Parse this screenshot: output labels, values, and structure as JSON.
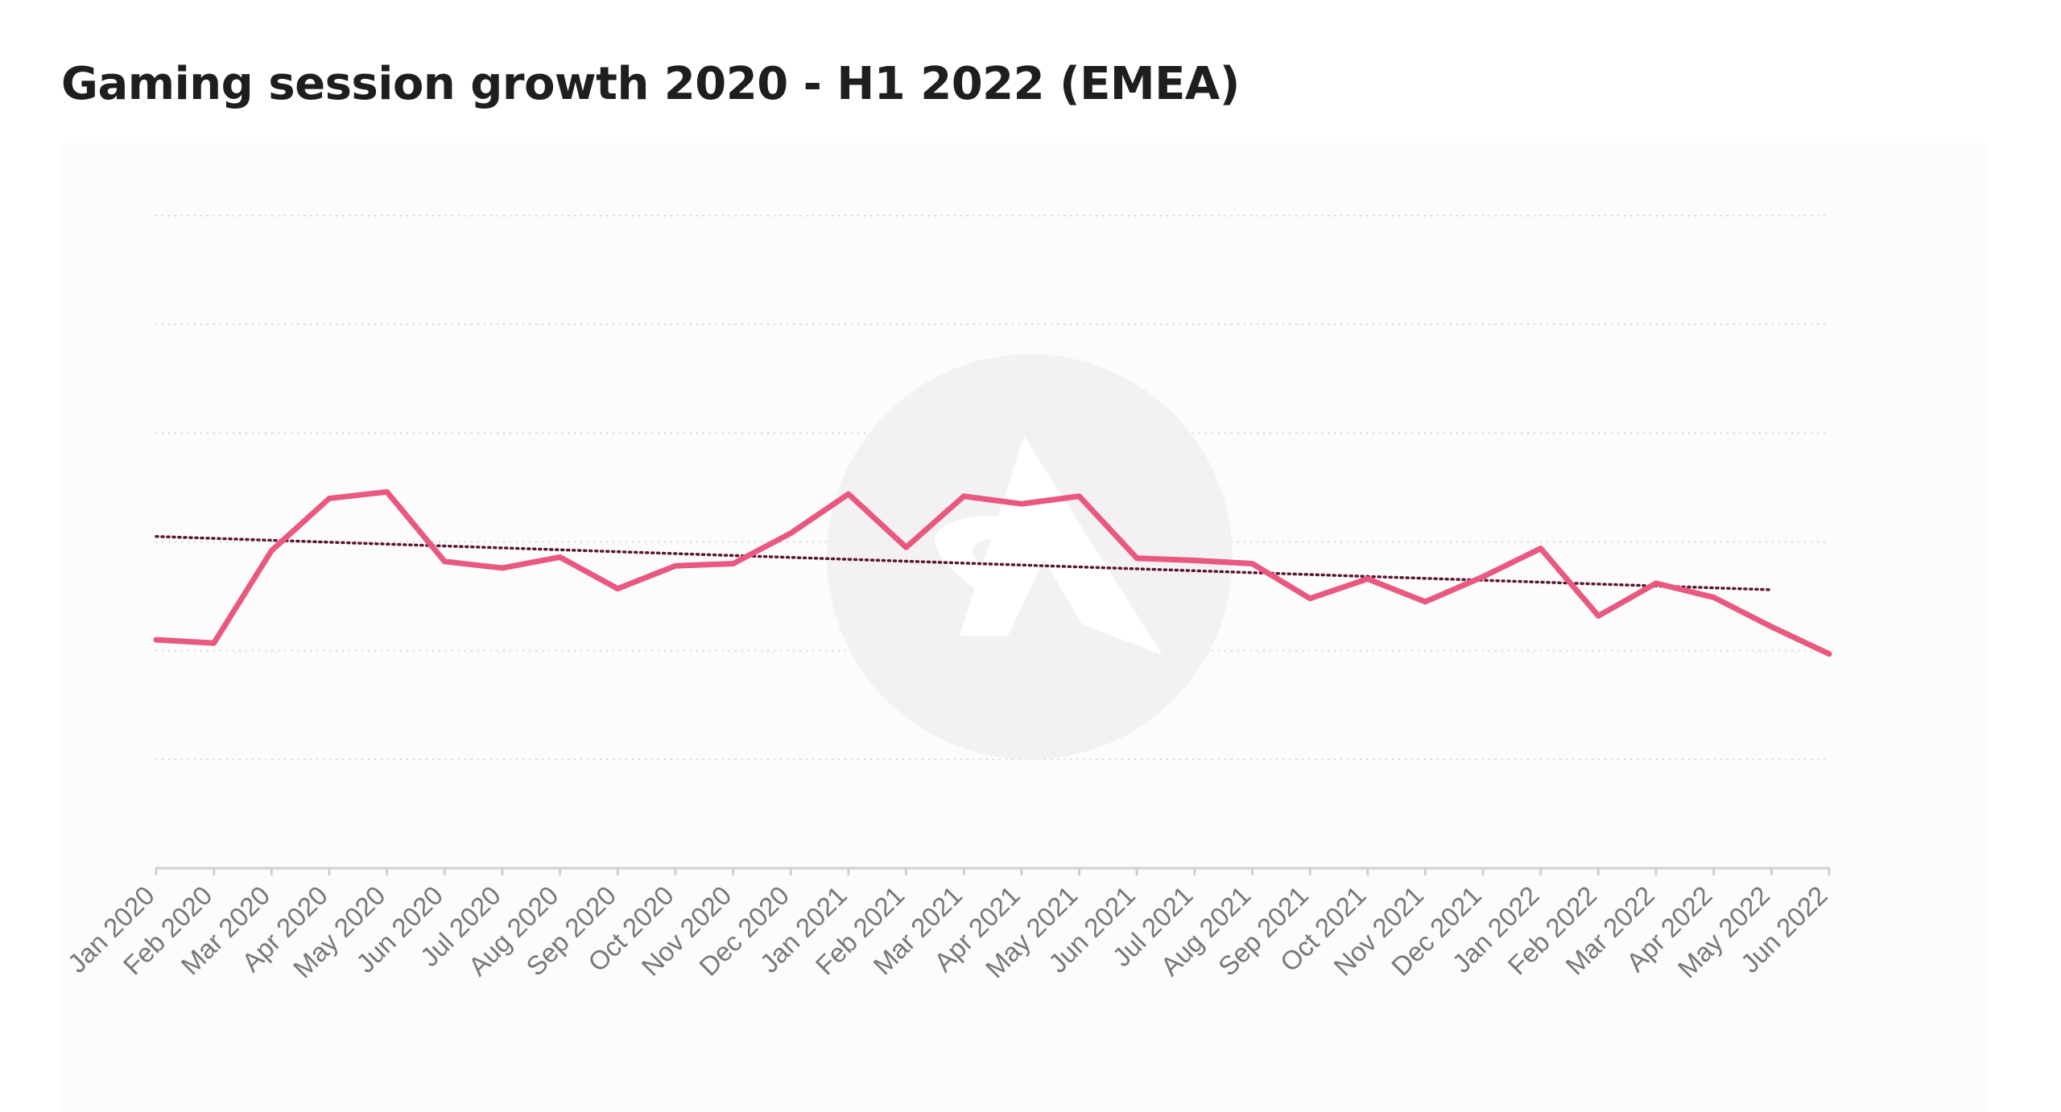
{
  "chart_data": {
    "type": "line",
    "title": "Gaming session growth 2020 - H1 2022 (EMEA)",
    "xlabel": "",
    "ylabel": "",
    "categories": [
      "Jan 2020",
      "Feb 2020",
      "Mar 2020",
      "Apr 2020",
      "May 2020",
      "Jun 2020",
      "Jul 2020",
      "Aug 2020",
      "Sep 2020",
      "Oct 2020",
      "Nov 2020",
      "Dec 2020",
      "Jan 2021",
      "Feb 2021",
      "Mar 2021",
      "Apr 2021",
      "May 2021",
      "Jun 2021",
      "Jul 2021",
      "Aug 2021",
      "Sep 2021",
      "Oct 2021",
      "Nov 2021",
      "Dec 2021",
      "Jan 2022",
      "Feb 2022",
      "Mar 2022",
      "Apr 2022",
      "May 2022",
      "Jun 2022"
    ],
    "series": [
      {
        "values": [
          2.1,
          2.07,
          2.92,
          3.4,
          3.46,
          2.82,
          2.76,
          2.86,
          2.57,
          2.78,
          2.8,
          3.08,
          3.44,
          2.95,
          3.42,
          3.35,
          3.42,
          2.85,
          2.83,
          2.8,
          2.48,
          2.66,
          2.45,
          2.68,
          2.94,
          2.32,
          2.62,
          2.49,
          2.22,
          1.97
        ],
        "color": "#e9587f"
      }
    ],
    "trendline": {
      "style": "dotted",
      "color": "#5c1530",
      "start": 3.05,
      "end": 2.56
    },
    "ylim": [
      0,
      6
    ],
    "grid": true,
    "legend": "none",
    "watermark": "logo"
  }
}
